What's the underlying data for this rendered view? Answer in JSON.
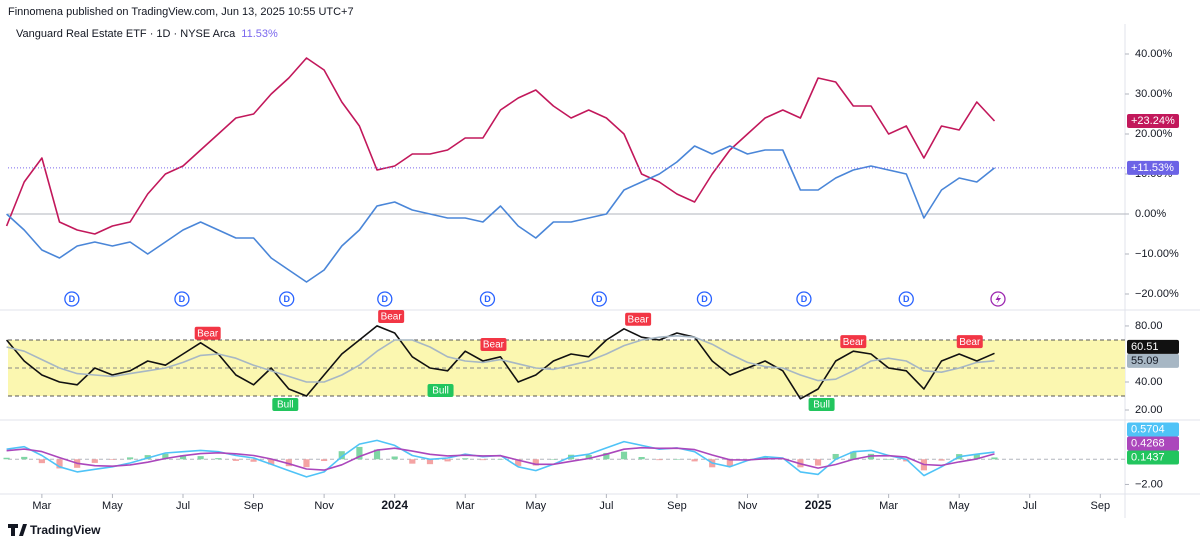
{
  "header": "Finnomena published on TradingView.com, Jun 13, 2025 10:55 UTC+7",
  "footer": "TradingView",
  "chart_data": [
    {
      "type": "line",
      "title": "Vanguard Real Estate ETF · 1D · NYSE Arca",
      "subtitle": "11.53%",
      "xlim": [
        1.04,
        32.7
      ],
      "x": [
        1,
        1.5,
        2,
        2.5,
        3,
        3.5,
        4,
        4.5,
        5,
        5.5,
        6,
        6.5,
        7,
        7.5,
        8,
        8.5,
        9,
        9.5,
        10,
        10.5,
        11,
        11.5,
        12,
        12.5,
        13,
        13.5,
        14,
        14.5,
        15,
        15.5,
        16,
        16.5,
        17,
        17.5,
        18,
        18.5,
        19,
        19.5,
        20,
        20.5,
        21,
        21.5,
        22,
        22.5,
        23,
        23.5,
        24,
        24.5,
        25,
        25.5,
        26,
        26.5,
        27,
        27.5,
        28,
        28.5,
        29
      ],
      "ylim": [
        -21.5,
        45
      ],
      "yticks": [
        {
          "value": 40,
          "label": "40.00%"
        },
        {
          "value": 30,
          "label": "30.00%"
        },
        {
          "value": 20,
          "label": "20.00%"
        },
        {
          "value": 10,
          "label": "10.00%"
        },
        {
          "value": 0,
          "label": "0.00%"
        },
        {
          "value": -10,
          "label": "−10.00%"
        },
        {
          "value": -20,
          "label": "−20.00%"
        }
      ],
      "series": [
        {
          "color": "#c2185b",
          "badge": "+23.24%",
          "values": [
            -3,
            8,
            14,
            -2,
            -4,
            -5,
            -3,
            -2,
            5,
            10,
            12,
            16,
            20,
            24,
            25,
            30,
            34,
            39,
            36,
            28,
            22,
            11,
            12,
            15,
            15,
            16,
            19,
            19,
            26,
            29,
            31,
            27,
            24,
            26,
            24,
            20,
            10,
            8,
            5,
            3,
            10,
            16,
            20,
            24,
            26,
            24,
            34,
            33,
            27,
            27,
            20,
            22,
            14,
            22,
            21,
            28,
            23.24
          ]
        },
        {
          "color": "#4a86d8",
          "badge": "+11.53%",
          "badge_color": "#6c63e6",
          "values": [
            0,
            -4,
            -9,
            -11,
            -8,
            -7,
            -8,
            -7,
            -10,
            -7,
            -4,
            -2,
            -4,
            -6,
            -6,
            -11,
            -14,
            -17,
            -14,
            -8,
            -4,
            2,
            3,
            1,
            0,
            -1,
            -1,
            -2,
            2,
            -3,
            -6,
            -2,
            -2,
            -1,
            0,
            6,
            8,
            10,
            13,
            17,
            15,
            17,
            15,
            16,
            16,
            6,
            6,
            9,
            11,
            12,
            11,
            10,
            -1,
            6,
            9,
            8,
            11.53
          ]
        }
      ],
      "dividends": {
        "label": "D",
        "x": [
          2.85,
          5.97,
          8.94,
          11.72,
          14.63,
          17.8,
          20.78,
          23.6,
          26.5
        ]
      }
    },
    {
      "type": "line",
      "xlim": [
        1.04,
        32.7
      ],
      "x": [
        1,
        1.5,
        2,
        2.5,
        3,
        3.5,
        4,
        4.5,
        5,
        5.5,
        6,
        6.5,
        7,
        7.5,
        8,
        8.5,
        9,
        9.5,
        10,
        10.5,
        11,
        11.5,
        12,
        12.5,
        13,
        13.5,
        14,
        14.5,
        15,
        15.5,
        16,
        16.5,
        17,
        17.5,
        18,
        18.5,
        19,
        19.5,
        20,
        20.5,
        21,
        21.5,
        22,
        22.5,
        23,
        23.5,
        24,
        24.5,
        25,
        25.5,
        26,
        26.5,
        27,
        27.5,
        28,
        28.5,
        29
      ],
      "ylim": [
        14.3,
        87.1
      ],
      "yticks": [
        {
          "value": 80,
          "label": "80.00"
        },
        {
          "value": 40,
          "label": "40.00"
        },
        {
          "value": 20,
          "label": "20.00"
        }
      ],
      "band": [
        30,
        70
      ],
      "midline": 50,
      "band_color": "#fbf7b0",
      "series": [
        {
          "color": "#111111",
          "badge": "60.51",
          "values": [
            70,
            55,
            45,
            40,
            38,
            50,
            45,
            48,
            55,
            52,
            60,
            68,
            60,
            45,
            38,
            50,
            35,
            30,
            45,
            60,
            70,
            80,
            75,
            58,
            50,
            48,
            62,
            55,
            58,
            40,
            45,
            55,
            60,
            58,
            70,
            78,
            72,
            70,
            75,
            72,
            55,
            45,
            50,
            55,
            48,
            28,
            35,
            55,
            62,
            60,
            50,
            48,
            35,
            55,
            60,
            55,
            60.51
          ]
        },
        {
          "color": "#a7b7c4",
          "badge": "55.09",
          "values": [
            65,
            62,
            56,
            50,
            46,
            45,
            44,
            46,
            48,
            50,
            54,
            59,
            60,
            57,
            52,
            48,
            44,
            40,
            40,
            45,
            52,
            62,
            70,
            70,
            65,
            58,
            55,
            54,
            56,
            53,
            50,
            49,
            52,
            55,
            60,
            66,
            70,
            72,
            73,
            72,
            67,
            60,
            54,
            51,
            50,
            45,
            41,
            42,
            48,
            55,
            57,
            55,
            48,
            47,
            50,
            54,
            55.09
          ]
        }
      ],
      "annotations": [
        {
          "label": "Bear",
          "x": 6.7,
          "y": 68,
          "color": "#f23645"
        },
        {
          "label": "Bear",
          "x": 11.9,
          "y": 80,
          "color": "#f23645"
        },
        {
          "label": "Bear",
          "x": 14.8,
          "y": 60,
          "color": "#f23645"
        },
        {
          "label": "Bear",
          "x": 18.9,
          "y": 78,
          "color": "#f23645"
        },
        {
          "label": "Bear",
          "x": 25,
          "y": 62,
          "color": "#f23645"
        },
        {
          "label": "Bear",
          "x": 28.3,
          "y": 62,
          "color": "#f23645"
        },
        {
          "label": "Bull",
          "x": 8.9,
          "y": 30,
          "color": "#22c55e"
        },
        {
          "label": "Bull",
          "x": 13.3,
          "y": 40,
          "color": "#22c55e"
        },
        {
          "label": "Bull",
          "x": 24.1,
          "y": 30,
          "color": "#22c55e"
        }
      ]
    },
    {
      "type": "line",
      "xlim": [
        1.04,
        32.7
      ],
      "x": [
        1,
        1.5,
        2,
        2.5,
        3,
        3.5,
        4,
        4.5,
        5,
        5.5,
        6,
        6.5,
        7,
        7.5,
        8,
        8.5,
        9,
        9.5,
        10,
        10.5,
        11,
        11.5,
        12,
        12.5,
        13,
        13.5,
        14,
        14.5,
        15,
        15.5,
        16,
        16.5,
        17,
        17.5,
        18,
        18.5,
        19,
        19.5,
        20,
        20.5,
        21,
        21.5,
        22,
        22.5,
        23,
        23.5,
        24,
        24.5,
        25,
        25.5,
        26,
        26.5,
        27,
        27.5,
        28,
        28.5,
        29
      ],
      "xticks": [
        {
          "value": 2,
          "label": "Mar"
        },
        {
          "value": 4,
          "label": "May"
        },
        {
          "value": 6,
          "label": "Jul"
        },
        {
          "value": 8,
          "label": "Sep"
        },
        {
          "value": 10,
          "label": "Nov"
        },
        {
          "value": 12,
          "label": "2024"
        },
        {
          "value": 14,
          "label": "Mar"
        },
        {
          "value": 16,
          "label": "May"
        },
        {
          "value": 18,
          "label": "Jul"
        },
        {
          "value": 20,
          "label": "Sep"
        },
        {
          "value": 22,
          "label": "Nov"
        },
        {
          "value": 24,
          "label": "2025"
        },
        {
          "value": 26,
          "label": "Mar"
        },
        {
          "value": 28,
          "label": "May"
        },
        {
          "value": 30,
          "label": "Jul"
        },
        {
          "value": 32,
          "label": "Sep"
        }
      ],
      "ylim": [
        -2.6,
        2.8
      ],
      "yticks": [
        {
          "value": -2,
          "label": "−2.00"
        }
      ],
      "series": [
        {
          "kind": "histogram",
          "color_up": "#7fd6a4",
          "color_down": "#f4a3a3",
          "badge": "0.1437",
          "badge_color": "#22c55e",
          "values": [
            0.12,
            0.19,
            -0.31,
            -0.73,
            -0.68,
            -0.29,
            -0.05,
            0.15,
            0.33,
            0.44,
            0.32,
            0.25,
            0.09,
            -0.13,
            -0.2,
            -0.42,
            -0.55,
            -0.63,
            -0.14,
            0.64,
            0.98,
            0.77,
            0.22,
            -0.35,
            -0.39,
            -0.17,
            0.08,
            -0.07,
            0.02,
            -0.53,
            -0.5,
            0,
            0.36,
            0.34,
            0.5,
            0.6,
            0.18,
            -0.07,
            0.02,
            -0.17,
            -0.64,
            -0.56,
            -0.04,
            0.16,
            0.04,
            -0.64,
            -0.5,
            0.42,
            0.61,
            0.43,
            0.02,
            -0.17,
            -0.88,
            -0.11,
            0.41,
            0.37,
            0.1437
          ]
        },
        {
          "color": "#4fc3f7",
          "badge": "0.5704",
          "values": [
            0.8,
            1.0,
            0.3,
            -0.6,
            -1.0,
            -0.8,
            -0.6,
            -0.3,
            0.1,
            0.5,
            0.6,
            0.7,
            0.6,
            0.3,
            0.1,
            -0.4,
            -0.9,
            -1.4,
            -1.0,
            0.2,
            1.2,
            1.5,
            1.1,
            0.3,
            0.0,
            0.1,
            0.4,
            0.2,
            0.3,
            -0.6,
            -0.9,
            -0.4,
            0.2,
            0.4,
            0.9,
            1.4,
            1.1,
            0.8,
            0.9,
            0.6,
            -0.3,
            -0.6,
            -0.1,
            0.2,
            0.1,
            -1.0,
            -1.2,
            0.0,
            0.6,
            0.7,
            0.3,
            0.0,
            -1.3,
            -0.6,
            0.2,
            0.4,
            0.5704
          ]
        },
        {
          "color": "#ab47bc",
          "badge": "0.4268",
          "values": [
            0.68,
            0.81,
            0.61,
            0.13,
            -0.32,
            -0.51,
            -0.55,
            -0.45,
            -0.23,
            0.06,
            0.28,
            0.45,
            0.51,
            0.43,
            0.3,
            0.02,
            -0.35,
            -0.77,
            -0.86,
            -0.44,
            0.22,
            0.73,
            0.88,
            0.65,
            0.39,
            0.27,
            0.32,
            0.27,
            0.28,
            -0.07,
            -0.4,
            -0.4,
            -0.16,
            0.06,
            0.4,
            0.8,
            0.92,
            0.87,
            0.88,
            0.77,
            0.34,
            -0.04,
            -0.06,
            0.04,
            0.06,
            -0.36,
            -0.7,
            -0.42,
            -0.01,
            0.27,
            0.28,
            0.17,
            -0.42,
            -0.49,
            -0.21,
            0.03,
            0.4268
          ]
        }
      ]
    }
  ]
}
